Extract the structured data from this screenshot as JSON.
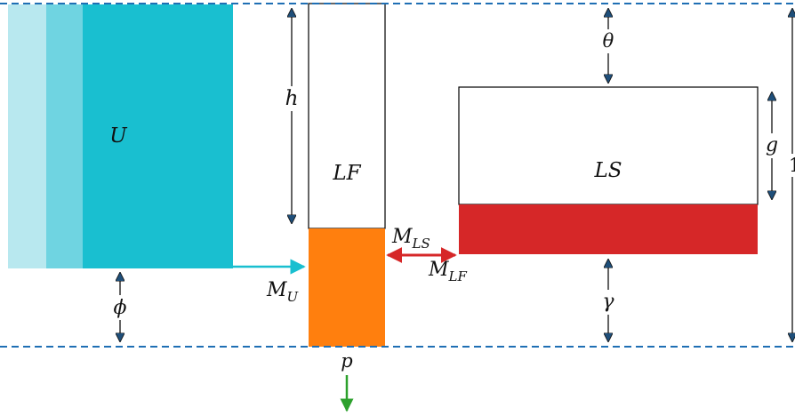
{
  "labels": {
    "U": "U",
    "LF": "LF",
    "LS": "LS",
    "h": "h",
    "theta": "θ",
    "g": "g",
    "phi": "ϕ",
    "gamma": "γ",
    "p": "p",
    "M": "M",
    "MU_sub": "U",
    "MLS_sub": "LS",
    "MLF_sub": "LF",
    "edge": "1"
  },
  "colors": {
    "u_light": "#b8e8ef",
    "u_mid": "#6fd4e1",
    "u_main": "#19bfd0",
    "lf_fill": "#ff7f0e",
    "ls_fill": "#d62728",
    "dashed": "#1f6fb4",
    "arrow_dark": "#1f3a5a",
    "arrow_mu": "#19bfd0",
    "arrow_exchange": "#d62728",
    "arrow_p": "#2ca02c"
  }
}
